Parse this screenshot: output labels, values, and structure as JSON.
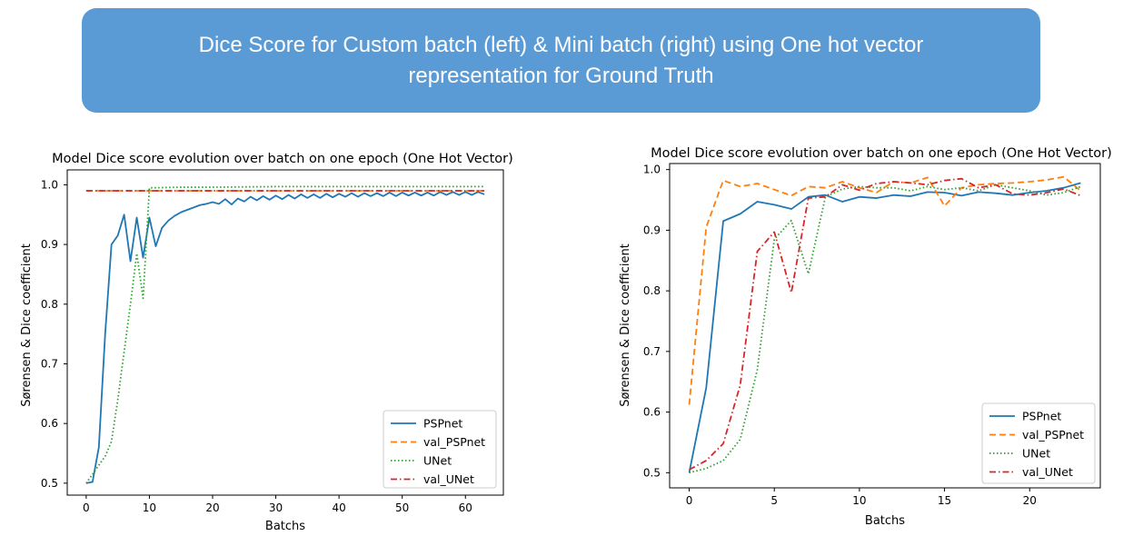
{
  "banner": {
    "line1": "Dice Score for Custom batch (left) & Mini batch (right) using One hot vector",
    "line2": "representation for Ground Truth"
  },
  "colors": {
    "banner": "#5b9bd5",
    "PSPnet": "#1f77b4",
    "val_PSPnet": "#ff7f0e",
    "UNet": "#2ca02c",
    "val_UNet": "#d62728"
  },
  "chart_data": [
    {
      "type": "line",
      "title": "Model Dice score evolution over batch on one epoch (One Hot Vector)",
      "xlabel": "Batchs",
      "ylabel": "Sørensen & Dice coefficient",
      "xlim": [
        -3,
        66
      ],
      "ylim": [
        0.48,
        1.025
      ],
      "xticks": [
        0,
        10,
        20,
        30,
        40,
        50,
        60
      ],
      "yticks": [
        0.5,
        0.6,
        0.7,
        0.8,
        0.9,
        1.0
      ],
      "ytick_labels": [
        "0.5",
        "0.6",
        "0.7",
        "0.8",
        "0.9",
        "1.0"
      ],
      "legend": "lower-right",
      "series": [
        {
          "name": "PSPnet",
          "style": "solid",
          "x": [
            0,
            1,
            2,
            3,
            4,
            5,
            6,
            7,
            8,
            9,
            10,
            11,
            12,
            13,
            14,
            15,
            16,
            17,
            18,
            19,
            20,
            21,
            22,
            23,
            24,
            25,
            26,
            27,
            28,
            29,
            30,
            31,
            32,
            33,
            34,
            35,
            36,
            37,
            38,
            39,
            40,
            41,
            42,
            43,
            44,
            45,
            46,
            47,
            48,
            49,
            50,
            51,
            52,
            53,
            54,
            55,
            56,
            57,
            58,
            59,
            60,
            61,
            62,
            63
          ],
          "values": [
            0.5,
            0.502,
            0.56,
            0.75,
            0.9,
            0.915,
            0.95,
            0.872,
            0.945,
            0.878,
            0.945,
            0.897,
            0.928,
            0.94,
            0.948,
            0.954,
            0.958,
            0.962,
            0.966,
            0.968,
            0.971,
            0.968,
            0.976,
            0.967,
            0.977,
            0.972,
            0.98,
            0.974,
            0.981,
            0.975,
            0.982,
            0.976,
            0.983,
            0.977,
            0.984,
            0.978,
            0.984,
            0.978,
            0.985,
            0.979,
            0.985,
            0.98,
            0.986,
            0.98,
            0.986,
            0.981,
            0.986,
            0.981,
            0.987,
            0.981,
            0.987,
            0.982,
            0.987,
            0.982,
            0.987,
            0.982,
            0.988,
            0.983,
            0.988,
            0.983,
            0.988,
            0.983,
            0.988,
            0.984
          ]
        },
        {
          "name": "val_PSPnet",
          "style": "dashed",
          "x": [
            0,
            63
          ],
          "values": [
            0.99,
            0.99
          ]
        },
        {
          "name": "UNet",
          "style": "dotted",
          "x": [
            0,
            1,
            2,
            3,
            4,
            5,
            6,
            7,
            8,
            9,
            10,
            11,
            15,
            20,
            30,
            40,
            50,
            63
          ],
          "values": [
            0.5,
            0.515,
            0.53,
            0.545,
            0.57,
            0.64,
            0.72,
            0.8,
            0.885,
            0.81,
            0.995,
            0.995,
            0.996,
            0.996,
            0.997,
            0.997,
            0.997,
            0.997
          ]
        },
        {
          "name": "val_UNet",
          "style": "dashdot",
          "x": [
            0,
            63
          ],
          "values": [
            0.99,
            0.99
          ]
        }
      ]
    },
    {
      "type": "line",
      "title": "Model Dice score evolution over batch on one epoch (One Hot Vector)",
      "xlabel": "Batchs",
      "ylabel": "Sørensen & Dice coefficient",
      "xlim": [
        -1.15,
        24.15
      ],
      "ylim": [
        0.475,
        1.01
      ],
      "xticks": [
        0,
        5,
        10,
        15,
        20
      ],
      "yticks": [
        0.5,
        0.6,
        0.7,
        0.8,
        0.9,
        1.0
      ],
      "ytick_labels": [
        "0.5",
        "0.6",
        "0.7",
        "0.8",
        "0.9",
        "1.0"
      ],
      "legend": "lower-right",
      "series": [
        {
          "name": "PSPnet",
          "style": "solid",
          "x": [
            0,
            1,
            2,
            3,
            4,
            5,
            6,
            7,
            8,
            9,
            10,
            11,
            12,
            13,
            14,
            15,
            16,
            17,
            18,
            19,
            20,
            21,
            22,
            23
          ],
          "values": [
            0.5,
            0.64,
            0.915,
            0.927,
            0.947,
            0.942,
            0.935,
            0.955,
            0.958,
            0.947,
            0.955,
            0.953,
            0.958,
            0.956,
            0.963,
            0.962,
            0.957,
            0.963,
            0.961,
            0.958,
            0.962,
            0.965,
            0.97,
            0.978
          ]
        },
        {
          "name": "val_PSPnet",
          "style": "dashed",
          "x": [
            0,
            1,
            2,
            3,
            4,
            5,
            6,
            7,
            8,
            9,
            10,
            11,
            12,
            13,
            14,
            15,
            16,
            17,
            18,
            19,
            20,
            21,
            22,
            23
          ],
          "values": [
            0.612,
            0.905,
            0.982,
            0.972,
            0.977,
            0.967,
            0.957,
            0.972,
            0.97,
            0.98,
            0.97,
            0.962,
            0.98,
            0.978,
            0.987,
            0.94,
            0.97,
            0.975,
            0.977,
            0.978,
            0.98,
            0.983,
            0.988,
            0.965
          ]
        },
        {
          "name": "UNet",
          "style": "dotted",
          "x": [
            0,
            1,
            2,
            3,
            4,
            5,
            6,
            7,
            8,
            9,
            10,
            11,
            12,
            13,
            14,
            15,
            16,
            17,
            18,
            19,
            20,
            21,
            22,
            23
          ],
          "values": [
            0.5,
            0.507,
            0.52,
            0.555,
            0.67,
            0.885,
            0.916,
            0.828,
            0.955,
            0.968,
            0.972,
            0.97,
            0.97,
            0.965,
            0.972,
            0.967,
            0.97,
            0.965,
            0.975,
            0.97,
            0.965,
            0.958,
            0.962,
            0.972
          ]
        },
        {
          "name": "val_UNet",
          "style": "dashdot",
          "x": [
            0,
            1,
            2,
            3,
            4,
            5,
            6,
            7,
            8,
            9,
            10,
            11,
            12,
            13,
            14,
            15,
            16,
            17,
            18,
            19,
            20,
            21,
            22,
            23
          ],
          "values": [
            0.505,
            0.52,
            0.548,
            0.645,
            0.865,
            0.897,
            0.797,
            0.953,
            0.955,
            0.975,
            0.966,
            0.977,
            0.98,
            0.978,
            0.975,
            0.982,
            0.985,
            0.97,
            0.975,
            0.96,
            0.958,
            0.962,
            0.968,
            0.957
          ]
        }
      ]
    }
  ]
}
